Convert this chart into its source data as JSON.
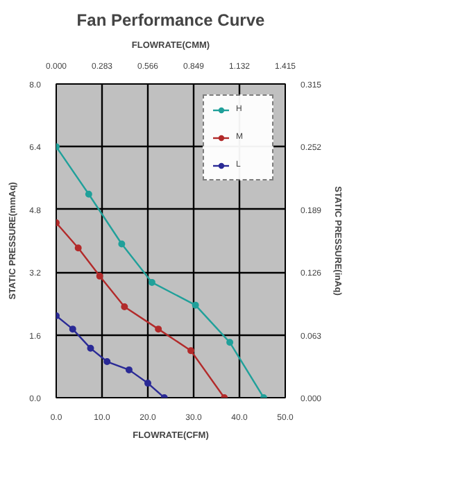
{
  "chart_data": {
    "type": "line",
    "title": "Fan Performance Curve",
    "xlabel": "FLOWRATE(CFM)",
    "x2label": "FLOWRATE(CMM)",
    "ylabel": "STATIC PRESSURE(mmAq)",
    "y2label": "STATIC PRESSURE(inAq)",
    "series": [
      {
        "name": "H",
        "color": "#20a09a",
        "x": [
          0,
          7.1,
          14.3,
          20.9,
          30.4,
          37.9,
          45.3
        ],
        "values": [
          6.4,
          5.19,
          3.92,
          2.94,
          2.36,
          1.41,
          0
        ]
      },
      {
        "name": "M",
        "color": "#b22a2a",
        "x": [
          0,
          4.8,
          9.5,
          14.9,
          22.3,
          29.4,
          36.7
        ],
        "values": [
          4.46,
          3.82,
          3.1,
          2.32,
          1.75,
          1.2,
          0
        ]
      },
      {
        "name": "L",
        "color": "#2a2a96",
        "x": [
          0,
          3.6,
          7.5,
          11.1,
          15.9,
          20.0,
          23.6
        ],
        "values": [
          2.09,
          1.75,
          1.26,
          0.92,
          0.71,
          0.37,
          0
        ]
      }
    ],
    "xlim": [
      0,
      50
    ],
    "xticks": [
      {
        "value": 0,
        "label": "0.0"
      },
      {
        "value": 10,
        "label": "10.0"
      },
      {
        "value": 20,
        "label": "20.0"
      },
      {
        "value": 30,
        "label": "30.0"
      },
      {
        "value": 40,
        "label": "40.0"
      },
      {
        "value": 50,
        "label": "50.0"
      }
    ],
    "ylim": [
      0,
      8
    ],
    "yticks": [
      {
        "value": 0,
        "label": "0.0"
      },
      1.6,
      3.2,
      4.8,
      6.4,
      {
        "value": 8,
        "label": "8.0"
      }
    ],
    "x2lim": [
      0,
      1.415
    ],
    "x2ticks": [
      {
        "value": 0,
        "label": "0.000"
      },
      0.283,
      0.566,
      0.849,
      1.132,
      1.415
    ],
    "y2lim": [
      0,
      0.315
    ],
    "y2ticks": [
      {
        "value": 0,
        "label": "0.000"
      },
      0.063,
      0.126,
      0.189,
      0.252,
      0.315
    ],
    "grid": true,
    "legend": "top right",
    "marker": "circle",
    "line_style": "solid"
  }
}
